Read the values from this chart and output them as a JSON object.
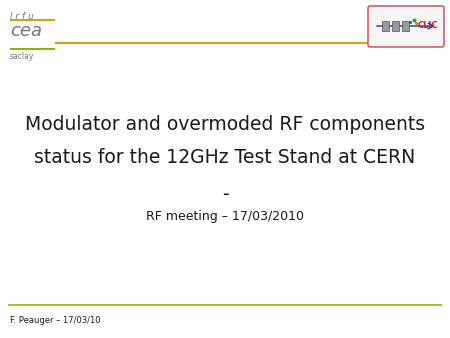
{
  "bg_color": "#ffffff",
  "title_line1": "Modulator and overmoded RF components",
  "title_line2": "status for the 12GHz Test Stand at CERN",
  "title_line3": "-",
  "subtitle": "RF meeting – 17/03/2010",
  "footer_text": "F. Peauger – 17/03/10",
  "header_line_color": "#D4A017",
  "footer_line_color": "#8DB600",
  "lrfu_text": "l r f u",
  "cea_text": "cea",
  "saclay_text": "saclay",
  "lrfu_line_color": "#D4A017",
  "saclay_line_color": "#8DB600",
  "title_fontsize": 13.5,
  "subtitle_fontsize": 9,
  "footer_fontsize": 6,
  "logo_text_color": "#777777",
  "text_color": "#1a1a1a"
}
